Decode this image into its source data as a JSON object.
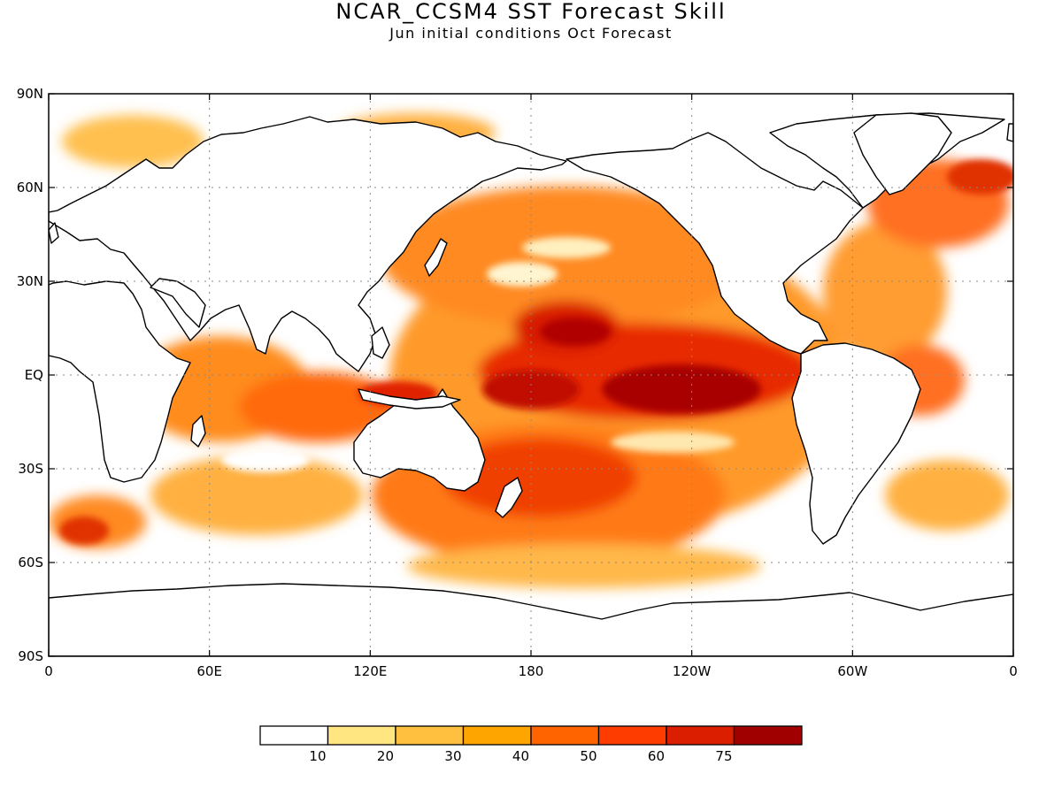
{
  "title": "NCAR_CCSM4 SST Forecast Skill",
  "subtitle": "Jun initial conditions  Oct Forecast",
  "map": {
    "projection": "equirectangular",
    "lon_range": [
      0,
      360
    ],
    "lat_range": [
      -90,
      90
    ],
    "grid": true,
    "field": "SST forecast skill",
    "lat_ticks": [
      "90N",
      "60N",
      "30N",
      "EQ",
      "30S",
      "60S",
      "90S"
    ],
    "lon_ticks": [
      "0",
      "60E",
      "120E",
      "180",
      "120W",
      "60W",
      "0"
    ]
  },
  "legend": {
    "placement": "bottom-center",
    "colors": [
      "#ffffff",
      "#ffe680",
      "#ffc040",
      "#ffa500",
      "#ff6400",
      "#ff3c00",
      "#dc1e00",
      "#a00000"
    ],
    "labels": [
      "10",
      "20",
      "30",
      "40",
      "50",
      "60",
      "75"
    ]
  }
}
